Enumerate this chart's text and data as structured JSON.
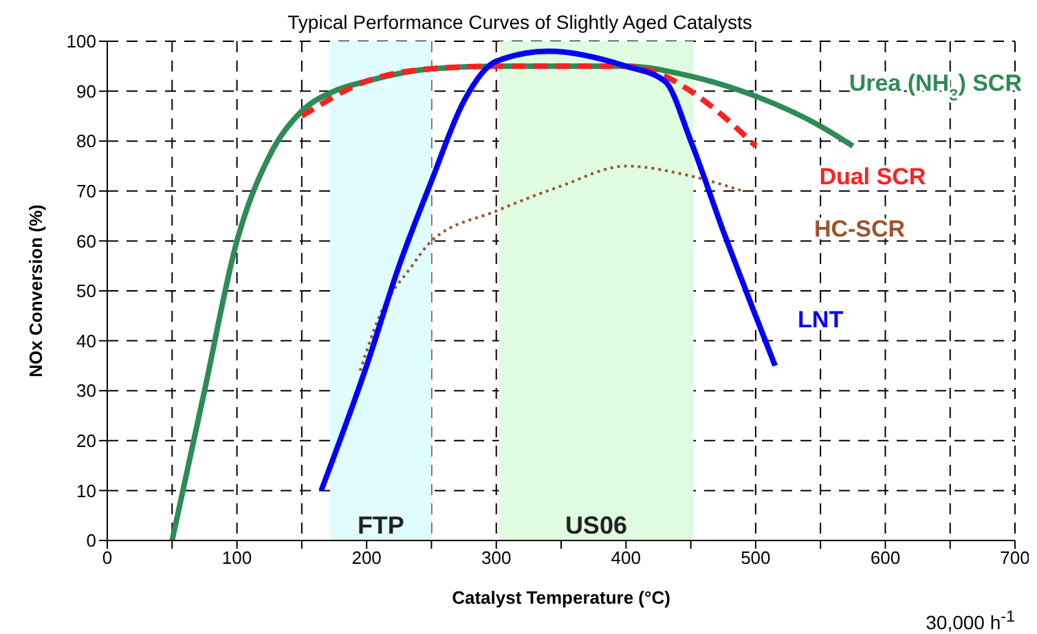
{
  "chart_data": {
    "type": "line",
    "title": "Typical Performance Curves of Slightly Aged Catalysts",
    "xlabel": "Catalyst Temperature (°C)",
    "ylabel": "NOx Conversion (%)",
    "xlim": [
      0,
      700
    ],
    "ylim": [
      0,
      100
    ],
    "xticks": [
      0,
      {
        "value": 50,
        "label": null
      },
      100,
      {
        "value": 150,
        "label": null
      },
      200,
      {
        "value": 250,
        "label": null
      },
      300,
      {
        "value": 350,
        "label": null
      },
      400,
      {
        "value": 450,
        "label": null
      },
      500,
      {
        "value": 550,
        "label": null
      },
      600,
      {
        "value": 650,
        "label": null
      },
      700
    ],
    "yticks": [
      0,
      10,
      20,
      30,
      40,
      50,
      60,
      70,
      80,
      90,
      100
    ],
    "grid": true,
    "marker": "none",
    "bands": [
      {
        "axis": "x",
        "from": 172,
        "to": 250,
        "label": "FTP",
        "color": "#e0fcfc"
      },
      {
        "axis": "x",
        "from": 302,
        "to": 452,
        "label": "US06",
        "color": "#e0fce0"
      }
    ],
    "annotations": [
      "30,000 h$^{-1}$"
    ],
    "series": [
      {
        "name": "Urea (NH$_{3}$) SCR",
        "color": "#2e8b57",
        "line_style": "solid",
        "x": [
          50,
          75,
          100,
          125,
          150,
          175,
          200,
          250,
          300,
          350,
          400,
          450,
          500,
          550,
          575
        ],
        "values": [
          0,
          30,
          60,
          77,
          86,
          90,
          92,
          94.5,
          95,
          95,
          95,
          93,
          89,
          83,
          79
        ]
      },
      {
        "name": "Dual SCR",
        "color": "#ff2020",
        "line_style": "dashed",
        "x": [
          150,
          200,
          250,
          300,
          350,
          400,
          430,
          450,
          475,
          500
        ],
        "values": [
          85,
          92,
          94.5,
          95,
          95,
          95,
          93,
          90,
          85,
          79
        ]
      },
      {
        "name": "HC-SCR",
        "color": "#a0522d",
        "line_style": "dotted",
        "x": [
          195,
          210,
          235,
          250,
          300,
          350,
          400,
          450,
          490
        ],
        "values": [
          34,
          45,
          55,
          60,
          66,
          71,
          75,
          73,
          70
        ]
      },
      {
        "name": "LNT",
        "color": "#0000ff",
        "line_style": "solid",
        "x": [
          165,
          200,
          225,
          250,
          275,
          300,
          340,
          400,
          430,
          450,
          475,
          500,
          515
        ],
        "values": [
          10,
          35,
          55,
          72,
          88,
          96,
          98,
          95,
          92,
          80,
          62,
          45,
          35
        ]
      }
    ]
  }
}
